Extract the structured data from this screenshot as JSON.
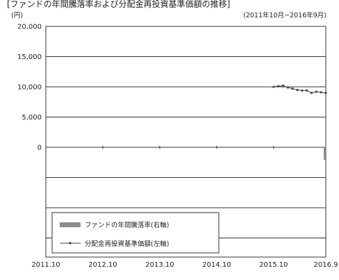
{
  "chart_data": {
    "type": "line",
    "title": "[ファンドの年間騰落率および分配金再投資基準価額の推移]",
    "unit_label": "(円)",
    "period": "(2011年10月~2016年9月)",
    "x_ticks": [
      "2011.10",
      "2012.10",
      "2013.10",
      "2014.10",
      "2015.10",
      "2016.9"
    ],
    "left_axis": {
      "ticks": [
        "20,000",
        "15,000",
        "10,000",
        "5,000",
        "0"
      ],
      "ylim": [
        0,
        20000
      ]
    },
    "legend": [
      "ファンドの年間騰落率(右軸)",
      "分配金再投資基準価額(左軸)"
    ],
    "grid": true,
    "series": [
      {
        "name": "分配金再投資基準価額(左軸)",
        "axis": "left",
        "x": [
          "2015.10",
          "2015.11",
          "2015.12",
          "2016.1",
          "2016.2",
          "2016.3",
          "2016.4",
          "2016.5",
          "2016.6",
          "2016.7",
          "2016.8",
          "2016.9"
        ],
        "values": [
          10000,
          10100,
          10200,
          9900,
          9700,
          9500,
          9400,
          9400,
          9000,
          9200,
          9100,
          9000
        ]
      },
      {
        "name": "ファンドの年間騰落率(右軸)",
        "axis": "right",
        "type": "bar",
        "x": [
          "2016.9"
        ],
        "values": [
          -10
        ]
      }
    ]
  }
}
